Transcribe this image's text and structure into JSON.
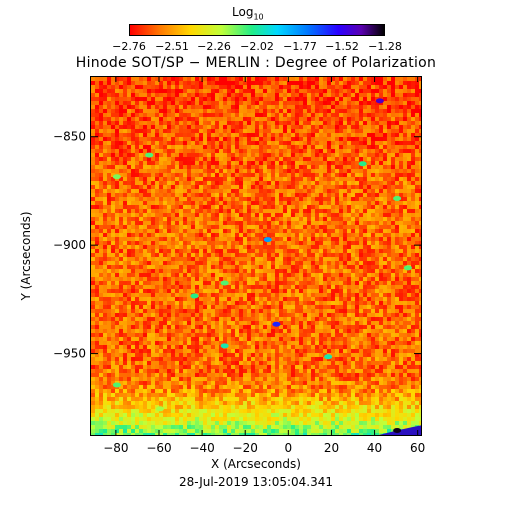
{
  "colorbar": {
    "label": "Log",
    "label_subscript": "10",
    "ticks": [
      "−2.76",
      "−2.51",
      "−2.26",
      "−2.02",
      "−1.77",
      "−1.52",
      "−1.28"
    ],
    "range": [
      -2.76,
      -1.28
    ]
  },
  "timestamp": "28-Jul-2019 13:05:04.341",
  "chart_data": {
    "type": "heatmap",
    "title": "Hinode SOT/SP − MERLIN : Degree of Polarization",
    "xlabel": "X (Arcseconds)",
    "ylabel": "Y (Arcseconds)",
    "xlim": [
      -92,
      62
    ],
    "ylim": [
      -988,
      -822
    ],
    "xticks": [
      -80,
      -60,
      -40,
      -20,
      0,
      20,
      40,
      60
    ],
    "yticks": [
      -850,
      -900,
      -950
    ],
    "xtick_labels": [
      "−80",
      "−60",
      "−40",
      "−20",
      "0",
      "20",
      "40",
      "60"
    ],
    "ytick_labels": [
      "−850",
      "−900",
      "−950"
    ],
    "value_range": [
      -2.76,
      -1.28
    ],
    "typical_value": -2.6,
    "background_pattern": "noisy orange/yellow field, slightly redder toward the top, greener near the bottom edge",
    "features": [
      {
        "x": 42,
        "y": -833,
        "value": -1.45
      },
      {
        "x": 34,
        "y": -862,
        "value": -2.05
      },
      {
        "x": -10,
        "y": -897,
        "value": -1.8
      },
      {
        "x": -30,
        "y": -917,
        "value": -2.1
      },
      {
        "x": -44,
        "y": -923,
        "value": -2.05
      },
      {
        "x": -6,
        "y": -936,
        "value": -1.6
      },
      {
        "x": -30,
        "y": -946,
        "value": -2.0
      },
      {
        "x": 18,
        "y": -951,
        "value": -2.0
      },
      {
        "x": -80,
        "y": -964,
        "value": -2.1
      },
      {
        "x": -65,
        "y": -858,
        "value": -2.1
      },
      {
        "x": -80,
        "y": -868,
        "value": -2.15
      },
      {
        "x": 50,
        "y": -878,
        "value": -2.1
      },
      {
        "x": 55,
        "y": -910,
        "value": -2.1
      },
      {
        "x": -60,
        "y": -975,
        "value": -2.2
      },
      {
        "x": 50,
        "y": -985,
        "value": -1.3
      }
    ]
  }
}
